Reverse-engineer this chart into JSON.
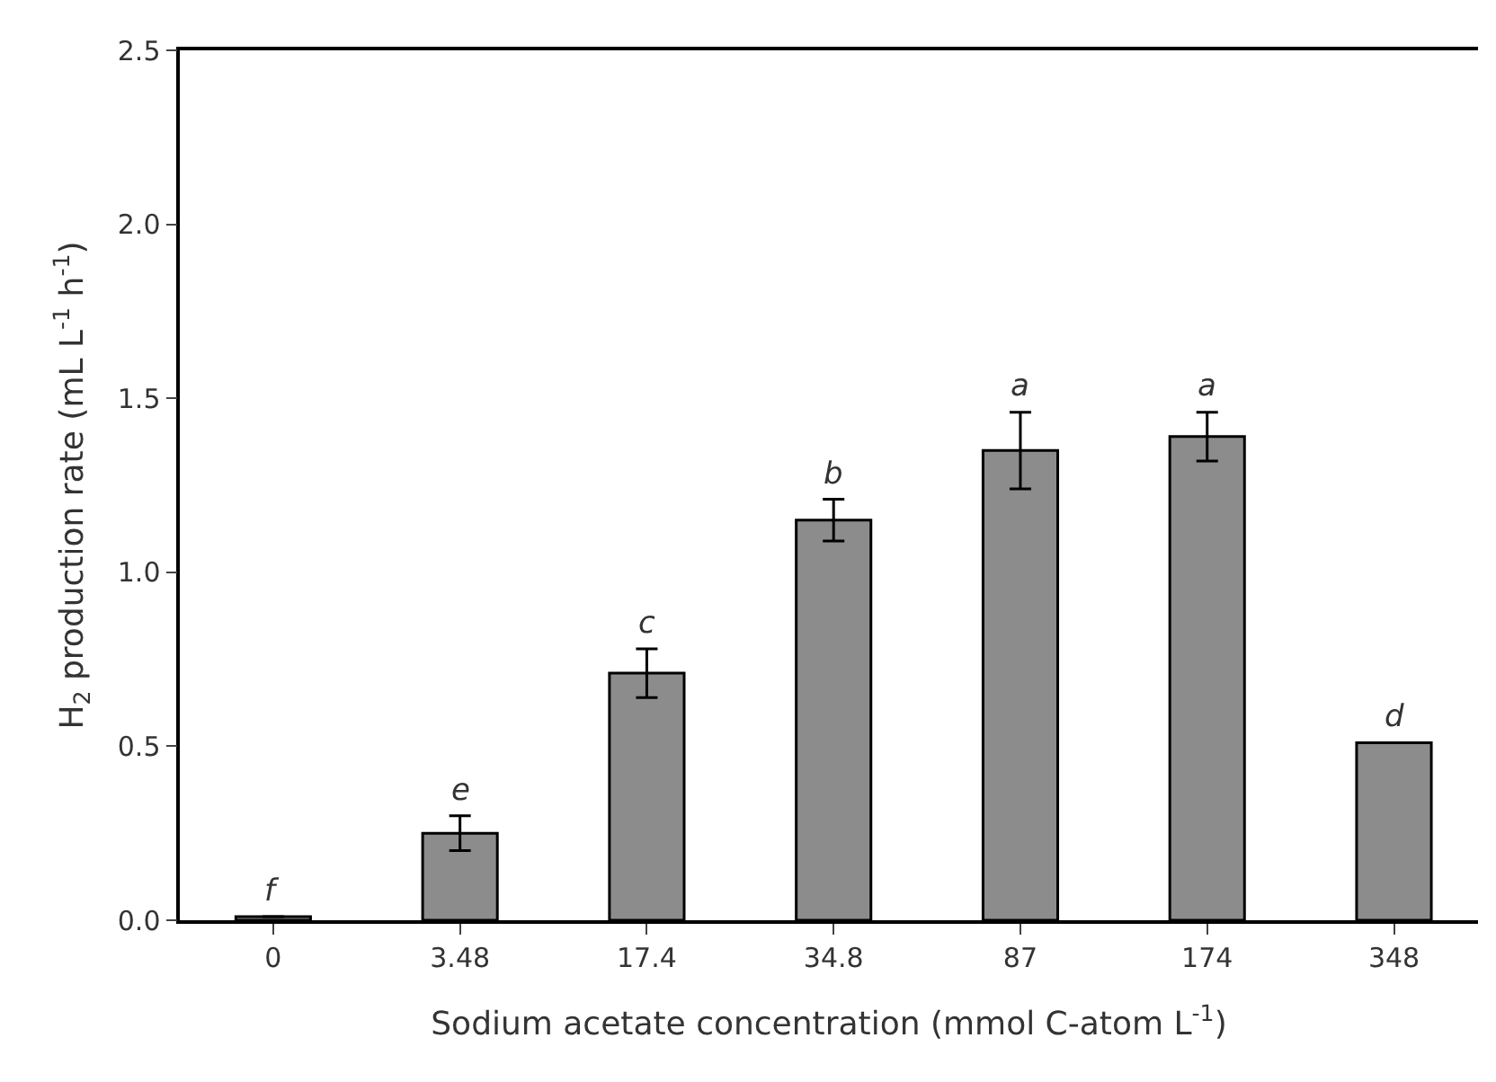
{
  "chart_data": {
    "type": "bar",
    "xlabel": "Sodium acetate concentration (mmol C-atom L$^{-1}$)",
    "ylabel": "H$_{2}$ production rate (mL L$^{-1}$ h$^{-1}$)",
    "categories": [
      "0",
      "3.48",
      "17.4",
      "34.8",
      "87",
      "174",
      "348"
    ],
    "values": [
      0.01,
      0.25,
      0.71,
      1.15,
      1.35,
      1.39,
      0.51
    ],
    "errors": [
      null,
      0.05,
      0.07,
      0.06,
      0.11,
      0.07,
      null
    ],
    "color": "#8c8c8c",
    "ylim": [
      0,
      2.5
    ],
    "yticks": [
      {
        "value": 0,
        "label": "0.0"
      },
      {
        "value": 0.5,
        "label": "0.5"
      },
      {
        "value": 1,
        "label": "1.0"
      },
      {
        "value": 1.5,
        "label": "1.5"
      },
      {
        "value": 2,
        "label": "2.0"
      },
      {
        "value": 2.5,
        "label": "2.5"
      }
    ],
    "annotations": [
      {
        "text": "f",
        "x": "0",
        "y": 0.01
      },
      {
        "text": "e",
        "x": "3.48",
        "y": 0.3
      },
      {
        "text": "c",
        "x": "17.4",
        "y": 0.78
      },
      {
        "text": "b",
        "x": "34.8",
        "y": 1.21
      },
      {
        "text": "a",
        "x": "87",
        "y": 1.46
      },
      {
        "text": "a",
        "x": "174",
        "y": 1.46
      },
      {
        "text": "d",
        "x": "348",
        "y": 0.51
      }
    ]
  }
}
